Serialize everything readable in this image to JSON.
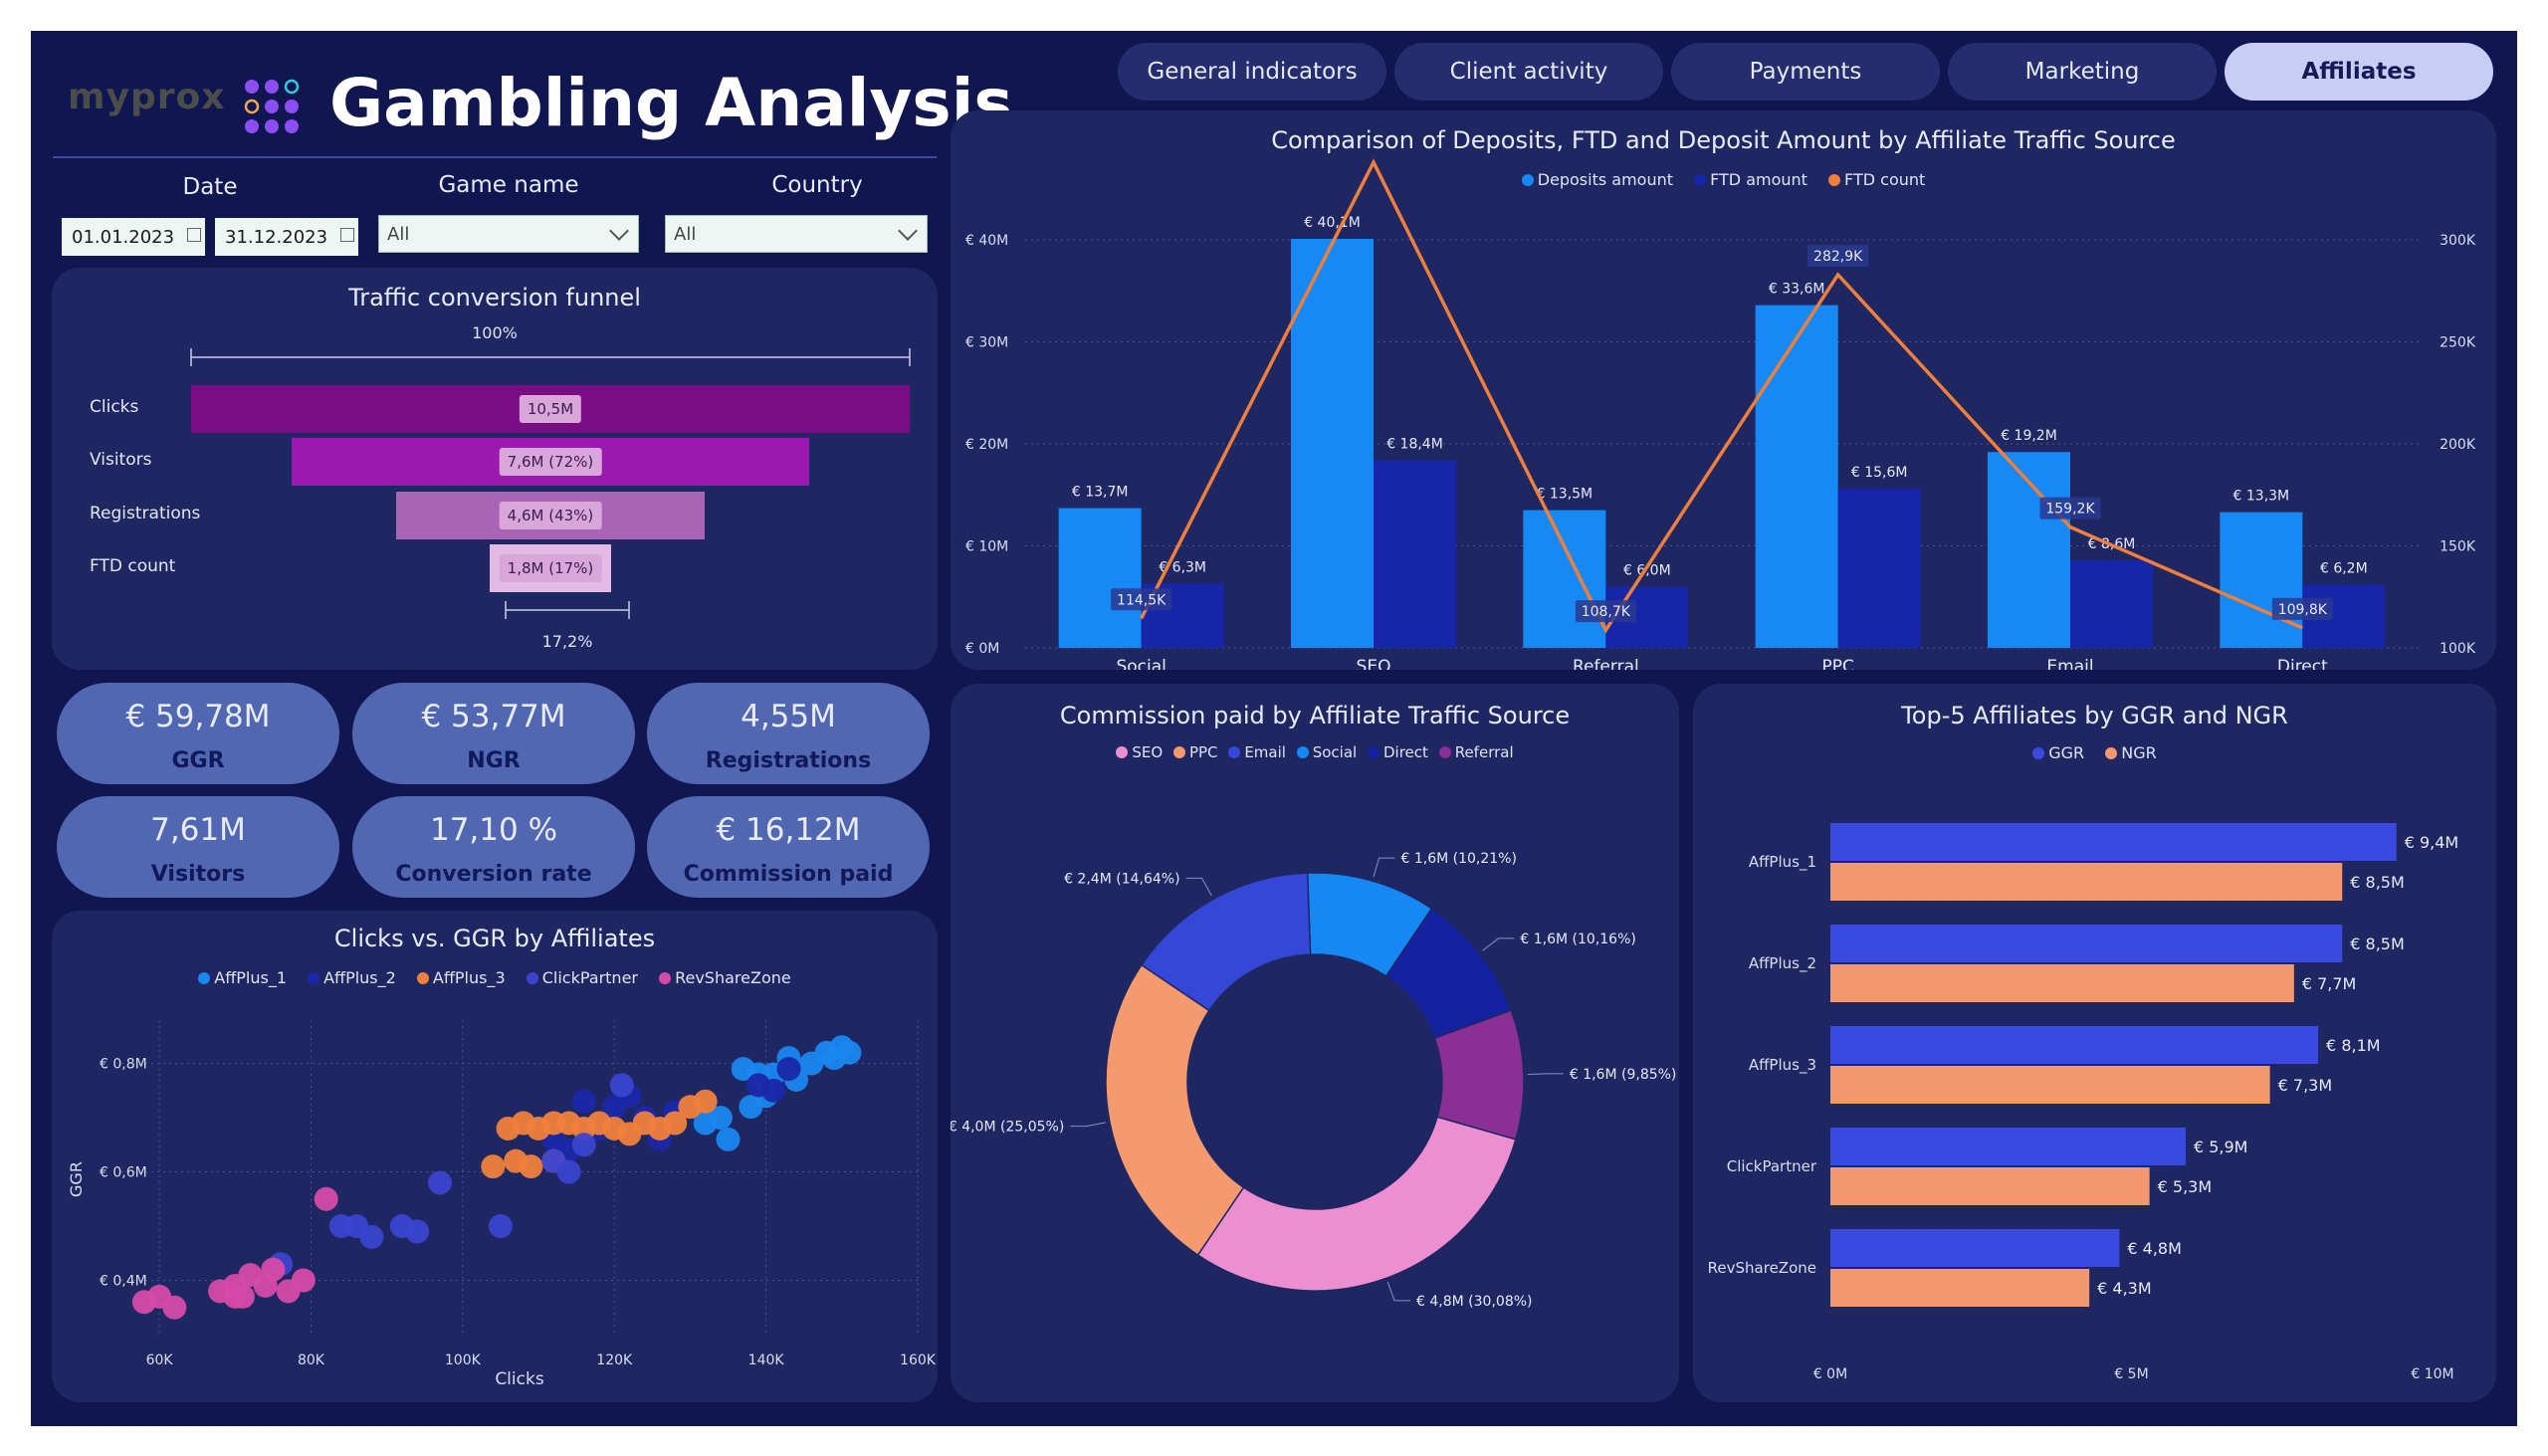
{
  "header": {
    "logo_text": "myprox",
    "title": "Gambling Analysis"
  },
  "tabs": [
    {
      "label": "General indicators",
      "active": false
    },
    {
      "label": "Client activity",
      "active": false
    },
    {
      "label": "Payments",
      "active": false
    },
    {
      "label": "Marketing",
      "active": false
    },
    {
      "label": "Affiliates",
      "active": true
    }
  ],
  "filters": {
    "date_label": "Date",
    "date_from": "01.01.2023",
    "date_to": "31.12.2023",
    "game_label": "Game name",
    "game_value": "All",
    "country_label": "Country",
    "country_value": "All"
  },
  "funnel": {
    "title": "Traffic conversion funnel",
    "top_label": "100%",
    "bottom_label": "17,2%",
    "stages": [
      {
        "name": "Clicks",
        "value_label": "10,5M",
        "fraction": 1.0,
        "color": "#7a0d84"
      },
      {
        "name": "Visitors",
        "value_label": "7,6M (72%)",
        "fraction": 0.72,
        "color": "#9a1aae"
      },
      {
        "name": "Registrations",
        "value_label": "4,6M (43%)",
        "fraction": 0.43,
        "color": "#a964b6"
      },
      {
        "name": "FTD count",
        "value_label": "1,8M (17%)",
        "fraction": 0.17,
        "color": "#e3b9e6"
      }
    ]
  },
  "kpis": [
    {
      "value": "€ 59,78M",
      "label": "GGR"
    },
    {
      "value": "€ 53,77M",
      "label": "NGR"
    },
    {
      "value": "4,55M",
      "label": "Registrations"
    },
    {
      "value": "7,61M",
      "label": "Visitors"
    },
    {
      "value": "17,10 %",
      "label": "Conversion rate"
    },
    {
      "value": "€ 16,12M",
      "label": "Commission paid"
    }
  ],
  "chart_data": [
    {
      "id": "combo",
      "type": "bar",
      "title": "Comparison of Deposits, FTD and Deposit Amount by Affiliate Traffic Source",
      "categories": [
        "Social",
        "SEO",
        "Referral",
        "PPC",
        "Email",
        "Direct"
      ],
      "series": [
        {
          "name": "Deposits amount",
          "kind": "bar",
          "axis": "left",
          "color": "#1689f5",
          "values": [
            13.7,
            40.1,
            13.5,
            33.6,
            19.2,
            13.3
          ],
          "labels": [
            "€ 13,7M",
            "€ 40,1M",
            "€ 13,5M",
            "€ 33,6M",
            "€ 19,2M",
            "€ 13,3M"
          ]
        },
        {
          "name": "FTD amount",
          "kind": "bar",
          "axis": "left",
          "color": "#1725a8",
          "values": [
            6.3,
            18.4,
            6.0,
            15.6,
            8.6,
            6.2
          ],
          "labels": [
            "€ 6,3M",
            "€ 18,4M",
            "€ 6,0M",
            "€ 15,6M",
            "€ 8,6M",
            "€ 6,2M"
          ]
        },
        {
          "name": "FTD count",
          "kind": "line",
          "axis": "right",
          "color": "#f07f3c",
          "values": [
            114.5,
            338,
            108.7,
            282.9,
            159.2,
            109.8
          ],
          "labels": [
            "114,5K",
            "",
            "108,7K",
            "282,9K",
            "159,2K",
            "109,8K"
          ]
        }
      ],
      "left_axis": {
        "ticks": [
          0,
          10,
          20,
          30,
          40
        ],
        "tick_labels": [
          "€ 0M",
          "€ 10M",
          "€ 20M",
          "€ 30M",
          "€ 40M"
        ],
        "ylim": [
          0,
          40
        ]
      },
      "right_axis": {
        "ticks": [
          100,
          150,
          200,
          250,
          300
        ],
        "tick_labels": [
          "100K",
          "150K",
          "200K",
          "250K",
          "300K"
        ],
        "ylim": [
          100,
          300
        ]
      },
      "grid": true,
      "legend": "top-center"
    },
    {
      "id": "donut",
      "type": "pie",
      "title": "Commission paid by Affiliate Traffic Source",
      "slices": [
        {
          "name": "SEO",
          "value": 4.8,
          "label": "€ 4,8M (30,08%)",
          "color": "#ec8ecf"
        },
        {
          "name": "PPC",
          "value": 4.0,
          "label": "€ 4,0M (25,05%)",
          "color": "#f49a6e"
        },
        {
          "name": "Email",
          "value": 2.4,
          "label": "€ 2,4M (14,64%)",
          "color": "#3447d6"
        },
        {
          "name": "Social",
          "value": 1.6,
          "label": "€ 1,6M (10,21%)",
          "color": "#1688f3"
        },
        {
          "name": "Direct",
          "value": 1.6,
          "label": "€ 1,6M (10,16%)",
          "color": "#1522a0"
        },
        {
          "name": "Referral",
          "value": 1.6,
          "label": "€ 1,6M (9,85%)",
          "color": "#8a2f94"
        }
      ],
      "legend": "top-center"
    },
    {
      "id": "hbar",
      "type": "bar",
      "orientation": "horizontal",
      "title": "Top-5 Affiliates by GGR and NGR",
      "categories": [
        "AffPlus_1",
        "AffPlus_2",
        "AffPlus_3",
        "ClickPartner",
        "RevShareZone"
      ],
      "series": [
        {
          "name": "GGR",
          "color": "#3a4ae0",
          "values": [
            9.4,
            8.5,
            8.1,
            5.9,
            4.8
          ],
          "labels": [
            "€ 9,4M",
            "€ 8,5M",
            "€ 8,1M",
            "€ 5,9M",
            "€ 4,8M"
          ]
        },
        {
          "name": "NGR",
          "color": "#f3976f",
          "values": [
            8.5,
            7.7,
            7.3,
            5.3,
            4.3
          ],
          "labels": [
            "€ 8,5M",
            "€ 7,7M",
            "€ 7,3M",
            "€ 5,3M",
            "€ 4,3M"
          ]
        }
      ],
      "x_axis": {
        "ticks": [
          0,
          5,
          10
        ],
        "tick_labels": [
          "€ 0M",
          "€ 5M",
          "€ 10M"
        ],
        "xlim": [
          0,
          10
        ]
      },
      "legend": "top-center"
    },
    {
      "id": "scatter",
      "type": "scatter",
      "title": "Clicks vs. GGR by Affiliates",
      "xlabel": "Clicks",
      "ylabel": "GGR",
      "x_axis": {
        "ticks": [
          60,
          80,
          100,
          120,
          140,
          160
        ],
        "tick_labels": [
          "60K",
          "80K",
          "100K",
          "120K",
          "140K",
          "160K"
        ],
        "xlim": [
          55,
          160
        ]
      },
      "y_axis": {
        "ticks": [
          0.4,
          0.6,
          0.8
        ],
        "tick_labels": [
          "€ 0,4M",
          "€ 0,6M",
          "€ 0,8M"
        ],
        "ylim": [
          0.3,
          0.88
        ]
      },
      "grid": true,
      "series": [
        {
          "name": "AffPlus_1",
          "color": "#1a86f0",
          "points": [
            [
              137,
              0.79
            ],
            [
              139,
              0.78
            ],
            [
              141,
              0.78
            ],
            [
              143,
              0.81
            ],
            [
              144,
              0.77
            ],
            [
              146,
              0.8
            ],
            [
              148,
              0.82
            ],
            [
              149,
              0.81
            ],
            [
              150,
              0.83
            ],
            [
              151,
              0.82
            ],
            [
              132,
              0.69
            ],
            [
              134,
              0.7
            ],
            [
              138,
              0.72
            ],
            [
              140,
              0.74
            ],
            [
              135,
              0.66
            ]
          ]
        },
        {
          "name": "AffPlus_2",
          "color": "#1b27a8",
          "points": [
            [
              116,
              0.73
            ],
            [
              118,
              0.68
            ],
            [
              120,
              0.72
            ],
            [
              122,
              0.74
            ],
            [
              124,
              0.7
            ],
            [
              126,
              0.66
            ],
            [
              112,
              0.66
            ],
            [
              114,
              0.64
            ],
            [
              128,
              0.71
            ],
            [
              139,
              0.76
            ],
            [
              141,
              0.75
            ],
            [
              143,
              0.79
            ]
          ]
        },
        {
          "name": "AffPlus_3",
          "color": "#f07f3c",
          "points": [
            [
              106,
              0.68
            ],
            [
              108,
              0.69
            ],
            [
              110,
              0.68
            ],
            [
              112,
              0.69
            ],
            [
              114,
              0.69
            ],
            [
              116,
              0.68
            ],
            [
              118,
              0.69
            ],
            [
              120,
              0.68
            ],
            [
              122,
              0.67
            ],
            [
              124,
              0.69
            ],
            [
              126,
              0.68
            ],
            [
              128,
              0.69
            ],
            [
              130,
              0.72
            ],
            [
              132,
              0.73
            ],
            [
              104,
              0.61
            ],
            [
              107,
              0.62
            ],
            [
              109,
              0.61
            ],
            [
              112,
              0.62
            ]
          ]
        },
        {
          "name": "ClickPartner",
          "color": "#3a44d0",
          "points": [
            [
              76,
              0.43
            ],
            [
              84,
              0.5
            ],
            [
              86,
              0.5
            ],
            [
              88,
              0.48
            ],
            [
              92,
              0.5
            ],
            [
              94,
              0.49
            ],
            [
              97,
              0.58
            ],
            [
              105,
              0.5
            ],
            [
              116,
              0.65
            ],
            [
              112,
              0.62
            ],
            [
              114,
              0.6
            ],
            [
              121,
              0.76
            ]
          ]
        },
        {
          "name": "RevShareZone",
          "color": "#d54aa8",
          "points": [
            [
              58,
              0.36
            ],
            [
              60,
              0.37
            ],
            [
              62,
              0.35
            ],
            [
              68,
              0.38
            ],
            [
              70,
              0.37
            ],
            [
              70,
              0.39
            ],
            [
              71,
              0.37
            ],
            [
              72,
              0.41
            ],
            [
              74,
              0.39
            ],
            [
              75,
              0.42
            ],
            [
              77,
              0.38
            ],
            [
              79,
              0.4
            ],
            [
              82,
              0.55
            ]
          ]
        }
      ],
      "legend": "top-center"
    }
  ]
}
